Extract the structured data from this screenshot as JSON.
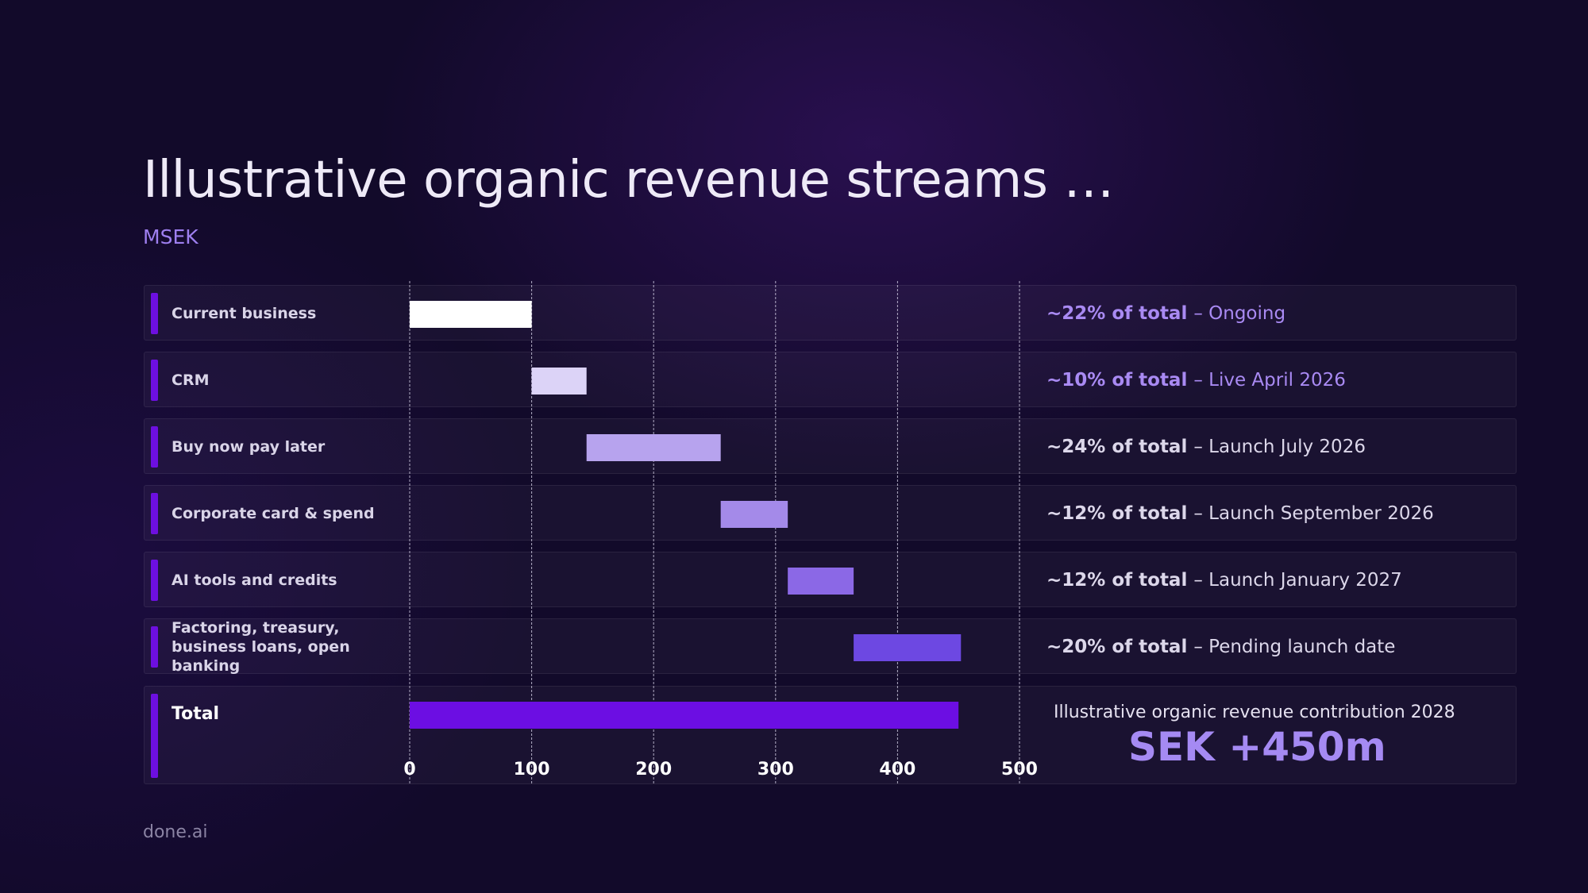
{
  "slide": {
    "title": "Illustrative organic revenue streams …",
    "subtitle": "MSEK",
    "footer": "done.ai"
  },
  "rows": [
    {
      "label": "Current business",
      "note_pct": "~22% of total",
      "note_rest": "– Ongoing",
      "note_color": "#a98af3"
    },
    {
      "label": "CRM",
      "note_pct": "~10% of total",
      "note_rest": "– Live April 2026",
      "note_color": "#a98af3"
    },
    {
      "label": "Buy now pay later",
      "note_pct": "~24% of total",
      "note_rest": "– Launch July 2026",
      "note_color": "#dcd7ea"
    },
    {
      "label": "Corporate card & spend",
      "note_pct": "~12% of total",
      "note_rest": "– Launch September 2026",
      "note_color": "#dcd7ea"
    },
    {
      "label": "AI tools and credits",
      "note_pct": "~12% of total",
      "note_rest": "– Launch January 2027",
      "note_color": "#dcd7ea"
    },
    {
      "label": "Factoring, treasury, business loans, open banking",
      "note_pct": "~20% of total",
      "note_rest": "– Pending launch date",
      "note_color": "#dcd7ea"
    }
  ],
  "total": {
    "label": "Total",
    "caption": "Illustrative organic revenue contribution 2028",
    "value": "SEK +450m"
  },
  "chart_data": {
    "type": "bar",
    "orientation": "horizontal",
    "subtype": "waterfall",
    "categories": [
      "Current business",
      "CRM",
      "Buy now pay later",
      "Corporate card & spend",
      "AI tools and credits",
      "Factoring, treasury, business loans, open banking",
      "Total"
    ],
    "series": [
      {
        "values": [
          100,
          45,
          110,
          55,
          54,
          88,
          450
        ],
        "starts": [
          0,
          100,
          145,
          255,
          310,
          364,
          0
        ],
        "colors": [
          "#ffffff",
          "#dcd3f7",
          "#b7a3ee",
          "#a48ae9",
          "#8b68e6",
          "#6d48e2",
          "#6c0ee3"
        ]
      }
    ],
    "ylabel": "MSEK",
    "xlim": [
      0,
      500
    ],
    "xticks": [
      0,
      100,
      200,
      300,
      400,
      500
    ],
    "grid": "vertical dashed"
  }
}
